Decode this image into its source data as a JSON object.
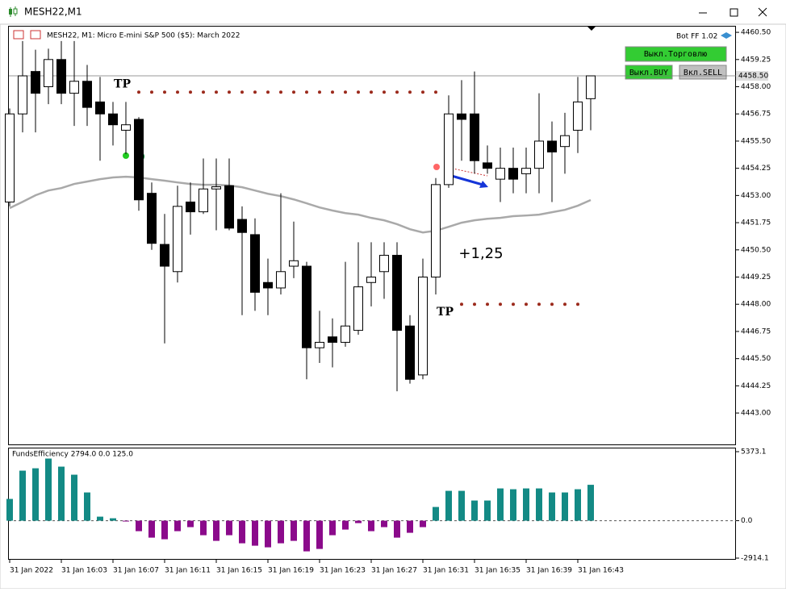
{
  "window": {
    "title": "MESH22,M1"
  },
  "panel": {
    "bot": "Bot FF 1.02",
    "buttons": [
      "Выкл.Торговлю",
      "Выкл.BUY",
      "Вкл.SELL"
    ]
  },
  "chart_data": [
    {
      "type": "candlestick",
      "title": "MESH22, M1:  Micro E-mini S&P 500 ($5): March 2022",
      "categories": [
        "31 Jan 2022",
        null,
        null,
        null,
        "31 Jan 16:03",
        null,
        null,
        null,
        "31 Jan 16:07",
        null,
        null,
        null,
        "31 Jan 16:11",
        null,
        null,
        null,
        "31 Jan 16:15",
        null,
        null,
        null,
        "31 Jan 16:19",
        null,
        null,
        null,
        "31 Jan 16:23",
        null,
        null,
        null,
        "31 Jan 16:27",
        null,
        null,
        null,
        "31 Jan 16:31",
        null,
        null,
        null,
        "31 Jan 16:35",
        null,
        null,
        null,
        "31 Jan 16:39",
        null,
        null,
        null,
        "31 Jan 16:43",
        null
      ],
      "open": [
        4452.7,
        4456.75,
        4458.7,
        4458.0,
        4459.25,
        4457.7,
        4458.25,
        4457.3,
        4456.75,
        4456.0,
        4456.5,
        4453.1,
        4450.75,
        4449.5,
        4452.7,
        4452.25,
        4453.3,
        4453.45,
        4451.9,
        4451.2,
        4449.0,
        4448.75,
        4449.75,
        4449.75,
        4446.0,
        4446.5,
        4446.25,
        4446.8,
        4449.0,
        4449.5,
        4450.25,
        4447.0,
        4444.75,
        4449.25,
        4453.5,
        4456.75,
        4456.75,
        4454.5,
        4453.75,
        4454.25,
        4454.0,
        4454.25,
        4455.5,
        4455.25,
        4456.0,
        4457.45
      ],
      "high": [
        4457.0,
        4460.1,
        4459.7,
        4459.75,
        4460.1,
        4460.1,
        4459.0,
        4458.45,
        4457.3,
        4457.3,
        4456.6,
        4453.6,
        4452.15,
        4453.45,
        4453.6,
        4454.7,
        4454.7,
        4454.7,
        4452.5,
        4451.95,
        4450.1,
        4453.1,
        4451.8,
        4449.95,
        4447.7,
        4447.35,
        4449.95,
        4450.85,
        4450.85,
        4450.85,
        4450.85,
        4447.5,
        4450.1,
        4453.8,
        4457.6,
        4458.3,
        4458.7,
        4455.3,
        4455.2,
        4455.2,
        4455.2,
        4457.7,
        4456.4,
        4456.8,
        4458.45,
        4458.5
      ],
      "low": [
        4452.5,
        4455.9,
        4455.9,
        4457.2,
        4457.2,
        4456.2,
        4456.2,
        4454.6,
        4455.3,
        4454.9,
        4452.3,
        4450.5,
        4446.2,
        4449.0,
        4451.2,
        4452.15,
        4451.4,
        4451.4,
        4447.5,
        4447.7,
        4447.5,
        4448.45,
        4449.2,
        4444.55,
        4445.3,
        4445.1,
        4446.05,
        4446.6,
        4447.9,
        4448.25,
        4444.0,
        4444.35,
        4444.55,
        4448.45,
        4453.35,
        4454.6,
        4454.0,
        4454.0,
        4452.7,
        4453.1,
        4453.1,
        4453.1,
        4452.7,
        4454.0,
        4454.95,
        4456.0
      ],
      "close": [
        4456.75,
        4458.5,
        4457.7,
        4459.25,
        4457.7,
        4458.25,
        4457.05,
        4456.75,
        4456.25,
        4456.25,
        4452.8,
        4450.8,
        4449.75,
        4452.5,
        4452.25,
        4453.3,
        4453.4,
        4451.5,
        4451.3,
        4448.55,
        4448.75,
        4449.5,
        4450.0,
        4446.0,
        4446.25,
        4446.25,
        4447.0,
        4448.8,
        4449.25,
        4450.25,
        4446.8,
        4444.55,
        4449.25,
        4453.5,
        4456.75,
        4456.5,
        4454.6,
        4454.25,
        4454.25,
        4453.75,
        4454.25,
        4455.5,
        4455.0,
        4455.75,
        4457.3,
        4458.5
      ],
      "up_color": "#ffffff",
      "down_color": "#000000",
      "ma": {
        "color": "#a9a9a9",
        "values": [
          4452.42,
          4452.71,
          4453.01,
          4453.23,
          4453.34,
          4453.53,
          4453.64,
          4453.75,
          4453.83,
          4453.86,
          4453.83,
          4453.75,
          4453.68,
          4453.6,
          4453.53,
          4453.49,
          4453.49,
          4453.46,
          4453.38,
          4453.23,
          4453.08,
          4452.97,
          4452.82,
          4452.64,
          4452.45,
          4452.31,
          4452.19,
          4452.12,
          4451.97,
          4451.86,
          4451.68,
          4451.45,
          4451.3,
          4451.38,
          4451.56,
          4451.75,
          4451.86,
          4451.93,
          4451.97,
          4452.05,
          4452.08,
          4452.12,
          4452.23,
          4452.34,
          4452.53,
          4452.79
        ]
      },
      "ylim": [
        4441.52,
        4460.8
      ],
      "yticks": [
        {
          "value": 4460.5,
          "label": "4460.50"
        },
        {
          "value": 4459.25,
          "label": "4459.25"
        },
        {
          "value": 4458,
          "label": "4458.00"
        },
        {
          "value": 4456.75,
          "label": "4456.75"
        },
        {
          "value": 4455.5,
          "label": "4455.50"
        },
        {
          "value": 4454.25,
          "label": "4454.25"
        },
        {
          "value": 4453,
          "label": "4453.00"
        },
        {
          "value": 4451.75,
          "label": "4451.75"
        },
        {
          "value": 4450.5,
          "label": "4450.50"
        },
        {
          "value": 4449.25,
          "label": "4449.25"
        },
        {
          "value": 4448,
          "label": "4448.00"
        },
        {
          "value": 4446.75,
          "label": "4446.75"
        },
        {
          "value": 4445.5,
          "label": "4445.50"
        },
        {
          "value": 4444.25,
          "label": "4444.25"
        },
        {
          "value": 4443,
          "label": "4443.00"
        }
      ],
      "price": {
        "value": 4458.5,
        "label": "4458.50"
      },
      "tp": [
        {
          "label": "TP",
          "value": 4457.75,
          "start": 10,
          "end": 33
        },
        {
          "label": "TP",
          "value": 4448,
          "start": 35,
          "end": 44
        }
      ],
      "annotation": {
        "text": "+1,25",
        "x": 36.5,
        "y": 4450.3
      }
    },
    {
      "type": "histogram",
      "title": "FundsEfficiency 2794.0 0.0 125.0",
      "values": [
        1695,
        3895,
        4080,
        4837,
        4208,
        3580,
        2198,
        314,
        188,
        -63,
        -816,
        -1319,
        -1445,
        -816,
        -502,
        -1130,
        -1570,
        -1130,
        -1759,
        -1947,
        -2073,
        -1759,
        -1570,
        -2387,
        -2198,
        -1130,
        -691,
        -188,
        -816,
        -502,
        -1319,
        -942,
        -502,
        1068,
        2324,
        2324,
        1570,
        1570,
        2512,
        2449,
        2512,
        2512,
        2198,
        2198,
        2449,
        2794
      ],
      "up_color": "#138a85",
      "down_color": "#8b0a8b",
      "ylim": [
        -2914.1,
        5373.1
      ],
      "yticks": [
        5373.1,
        {
          "value": 0,
          "label": "0.0"
        },
        -2914.1
      ]
    }
  ]
}
